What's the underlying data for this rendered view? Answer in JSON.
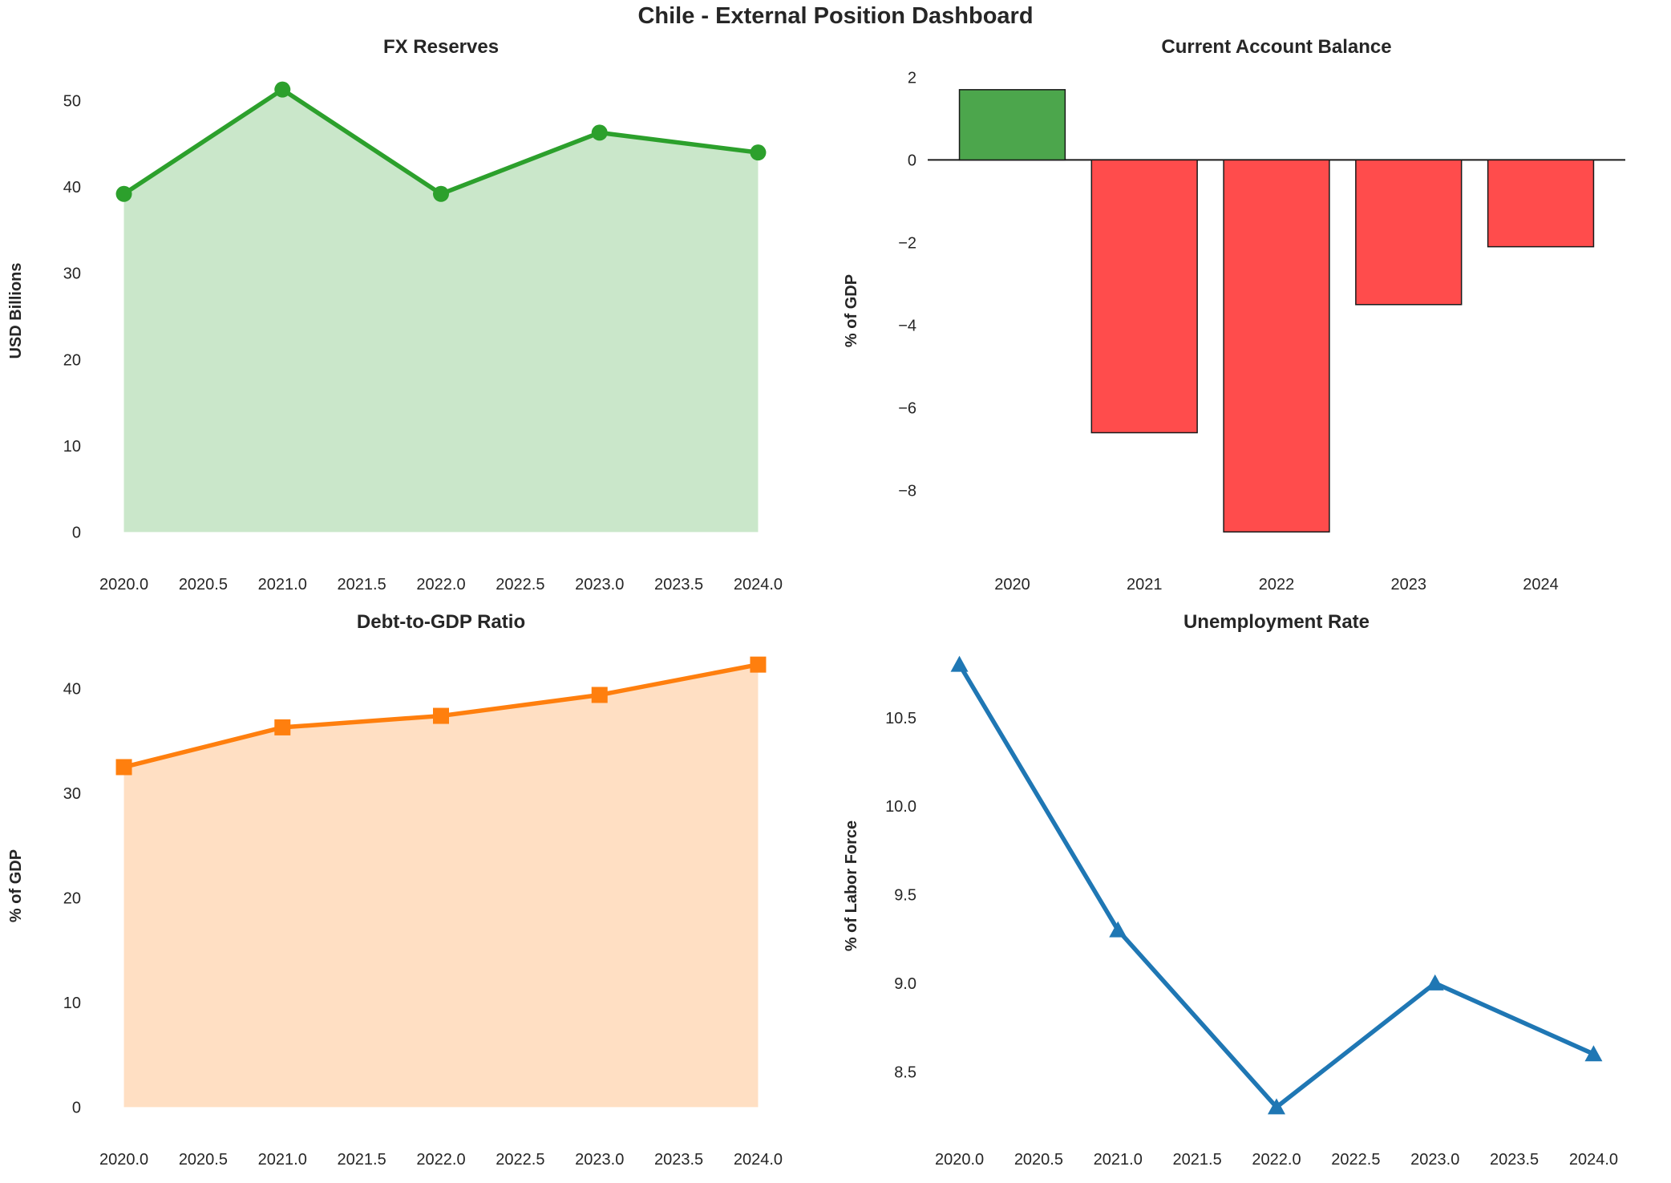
{
  "dashboard": {
    "title": "Chile - External Position Dashboard"
  },
  "chart_data": [
    {
      "id": "fx-reserves",
      "type": "area",
      "title": "FX Reserves",
      "xlabel": "",
      "ylabel": "USD Billions",
      "x": [
        2020,
        2021,
        2022,
        2023,
        2024
      ],
      "values": [
        39.2,
        51.3,
        39.2,
        46.3,
        44.0
      ],
      "line_color": "#2ca02c",
      "fill_color": "#cae7ca",
      "marker": "circle",
      "xlim": [
        2019.8,
        2024.2
      ],
      "ylim": [
        -2.57,
        53.87
      ],
      "xticks": {
        "values": [
          2020,
          2020.5,
          2021,
          2021.5,
          2022,
          2022.5,
          2023,
          2023.5,
          2024
        ],
        "labels": [
          "2020.0",
          "2020.5",
          "2021.0",
          "2021.5",
          "2022.0",
          "2022.5",
          "2023.0",
          "2023.5",
          "2024.0"
        ]
      },
      "yticks": {
        "values": [
          0,
          10,
          20,
          30,
          40,
          50
        ],
        "labels": [
          "0",
          "10",
          "20",
          "30",
          "40",
          "50"
        ]
      },
      "grid": false,
      "legend": null
    },
    {
      "id": "current-account",
      "type": "bar",
      "title": "Current Account Balance",
      "xlabel": "",
      "ylabel": "% of GDP",
      "categories": [
        "2020",
        "2021",
        "2022",
        "2023",
        "2024"
      ],
      "values": [
        1.7,
        -6.6,
        -9.0,
        -3.5,
        -2.1
      ],
      "positive_color": "#4ca64c",
      "negative_color": "#ff4c4c",
      "bar_edge_color": "#1a1a1a",
      "zero_line_color": "#1a1a1a",
      "bar_width": 0.8,
      "xlim": [
        -0.64,
        4.64
      ],
      "ylim": [
        -9.54,
        2.24
      ],
      "yticks": {
        "values": [
          2,
          0,
          -2,
          -4,
          -6,
          -8
        ],
        "labels": [
          "2",
          "0",
          "−2",
          "−4",
          "−6",
          "−8"
        ]
      },
      "grid": false,
      "legend": null
    },
    {
      "id": "debt-to-gdp",
      "type": "area",
      "title": "Debt-to-GDP Ratio",
      "xlabel": "",
      "ylabel": "% of GDP",
      "x": [
        2020,
        2021,
        2022,
        2023,
        2024
      ],
      "values": [
        32.5,
        36.3,
        37.4,
        39.4,
        42.3
      ],
      "line_color": "#ff7f0e",
      "fill_color": "#ffdfc3",
      "marker": "square",
      "xlim": [
        2019.8,
        2024.2
      ],
      "ylim": [
        -2.12,
        44.42
      ],
      "xticks": {
        "values": [
          2020,
          2020.5,
          2021,
          2021.5,
          2022,
          2022.5,
          2023,
          2023.5,
          2024
        ],
        "labels": [
          "2020.0",
          "2020.5",
          "2021.0",
          "2021.5",
          "2022.0",
          "2022.5",
          "2023.0",
          "2023.5",
          "2024.0"
        ]
      },
      "yticks": {
        "values": [
          0,
          10,
          20,
          30,
          40
        ],
        "labels": [
          "0",
          "10",
          "20",
          "30",
          "40"
        ]
      },
      "grid": false,
      "legend": null
    },
    {
      "id": "unemployment",
      "type": "line",
      "title": "Unemployment Rate",
      "xlabel": "",
      "ylabel": "% of Labor Force",
      "x": [
        2020,
        2021,
        2022,
        2023,
        2024
      ],
      "values": [
        10.8,
        9.3,
        8.3,
        9.0,
        8.6
      ],
      "line_color": "#1f77b4",
      "marker": "triangle",
      "xlim": [
        2019.8,
        2024.2
      ],
      "ylim": [
        8.175,
        10.925
      ],
      "xticks": {
        "values": [
          2020,
          2020.5,
          2021,
          2021.5,
          2022,
          2022.5,
          2023,
          2023.5,
          2024
        ],
        "labels": [
          "2020.0",
          "2020.5",
          "2021.0",
          "2021.5",
          "2022.0",
          "2022.5",
          "2023.0",
          "2023.5",
          "2024.0"
        ]
      },
      "yticks": {
        "values": [
          8.5,
          9.0,
          9.5,
          10.0,
          10.5
        ],
        "labels": [
          "8.5",
          "9.0",
          "9.5",
          "10.0",
          "10.5"
        ]
      },
      "grid": false,
      "legend": null
    }
  ],
  "style": {
    "text_color": "#262626",
    "background": "#ffffff",
    "title_fontsize": 24,
    "tick_fontsize": 20,
    "label_fontsize": 20,
    "main_title_fontsize": 29
  }
}
